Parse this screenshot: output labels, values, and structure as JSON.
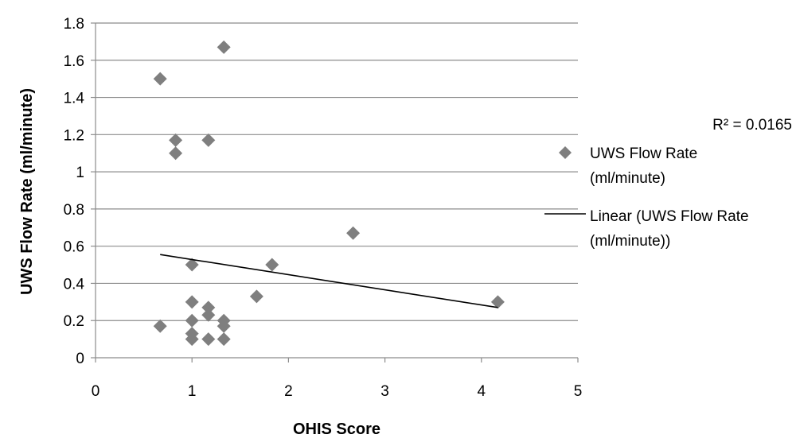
{
  "chart_data": {
    "type": "scatter",
    "title": "",
    "xlabel": "OHIS Score",
    "ylabel": "UWS Flow Rate (ml/minute)",
    "xlim": [
      0,
      5
    ],
    "ylim": [
      0,
      1.8
    ],
    "x_ticks": [
      "0",
      "1",
      "2",
      "3",
      "4",
      "5"
    ],
    "y_ticks": [
      "0",
      "0.2",
      "0.4",
      "0.6",
      "0.8",
      "1",
      "1.2",
      "1.4",
      "1.6",
      "1.8"
    ],
    "grid": "horizontal",
    "legend_position": "right",
    "series": [
      {
        "name": "UWS Flow Rate (ml/minute)",
        "marker": "diamond",
        "color": "#7f7f7f",
        "points": [
          {
            "x": 0.67,
            "y": 1.5
          },
          {
            "x": 0.67,
            "y": 0.17
          },
          {
            "x": 0.83,
            "y": 1.17
          },
          {
            "x": 0.83,
            "y": 1.1
          },
          {
            "x": 1.0,
            "y": 0.5
          },
          {
            "x": 1.0,
            "y": 0.3
          },
          {
            "x": 1.0,
            "y": 0.2
          },
          {
            "x": 1.0,
            "y": 0.13
          },
          {
            "x": 1.0,
            "y": 0.1
          },
          {
            "x": 1.17,
            "y": 1.17
          },
          {
            "x": 1.17,
            "y": 0.27
          },
          {
            "x": 1.17,
            "y": 0.23
          },
          {
            "x": 1.17,
            "y": 0.1
          },
          {
            "x": 1.33,
            "y": 1.67
          },
          {
            "x": 1.33,
            "y": 0.2
          },
          {
            "x": 1.33,
            "y": 0.17
          },
          {
            "x": 1.33,
            "y": 0.1
          },
          {
            "x": 1.67,
            "y": 0.33
          },
          {
            "x": 1.83,
            "y": 0.5
          },
          {
            "x": 2.67,
            "y": 0.67
          },
          {
            "x": 4.17,
            "y": 0.3
          }
        ]
      }
    ],
    "trendline": {
      "name": "Linear (UWS Flow Rate (ml/minute))",
      "type": "linear",
      "color": "#000000",
      "x_start": 0.67,
      "y_start": 0.555,
      "x_end": 4.17,
      "y_end": 0.27,
      "r_squared_label": "R² = 0.0165"
    },
    "legend": [
      {
        "kind": "marker",
        "label_lines": [
          "UWS Flow Rate",
          "(ml/minute)"
        ]
      },
      {
        "kind": "line",
        "label_lines": [
          "Linear (UWS Flow Rate",
          "(ml/minute))"
        ]
      }
    ]
  }
}
